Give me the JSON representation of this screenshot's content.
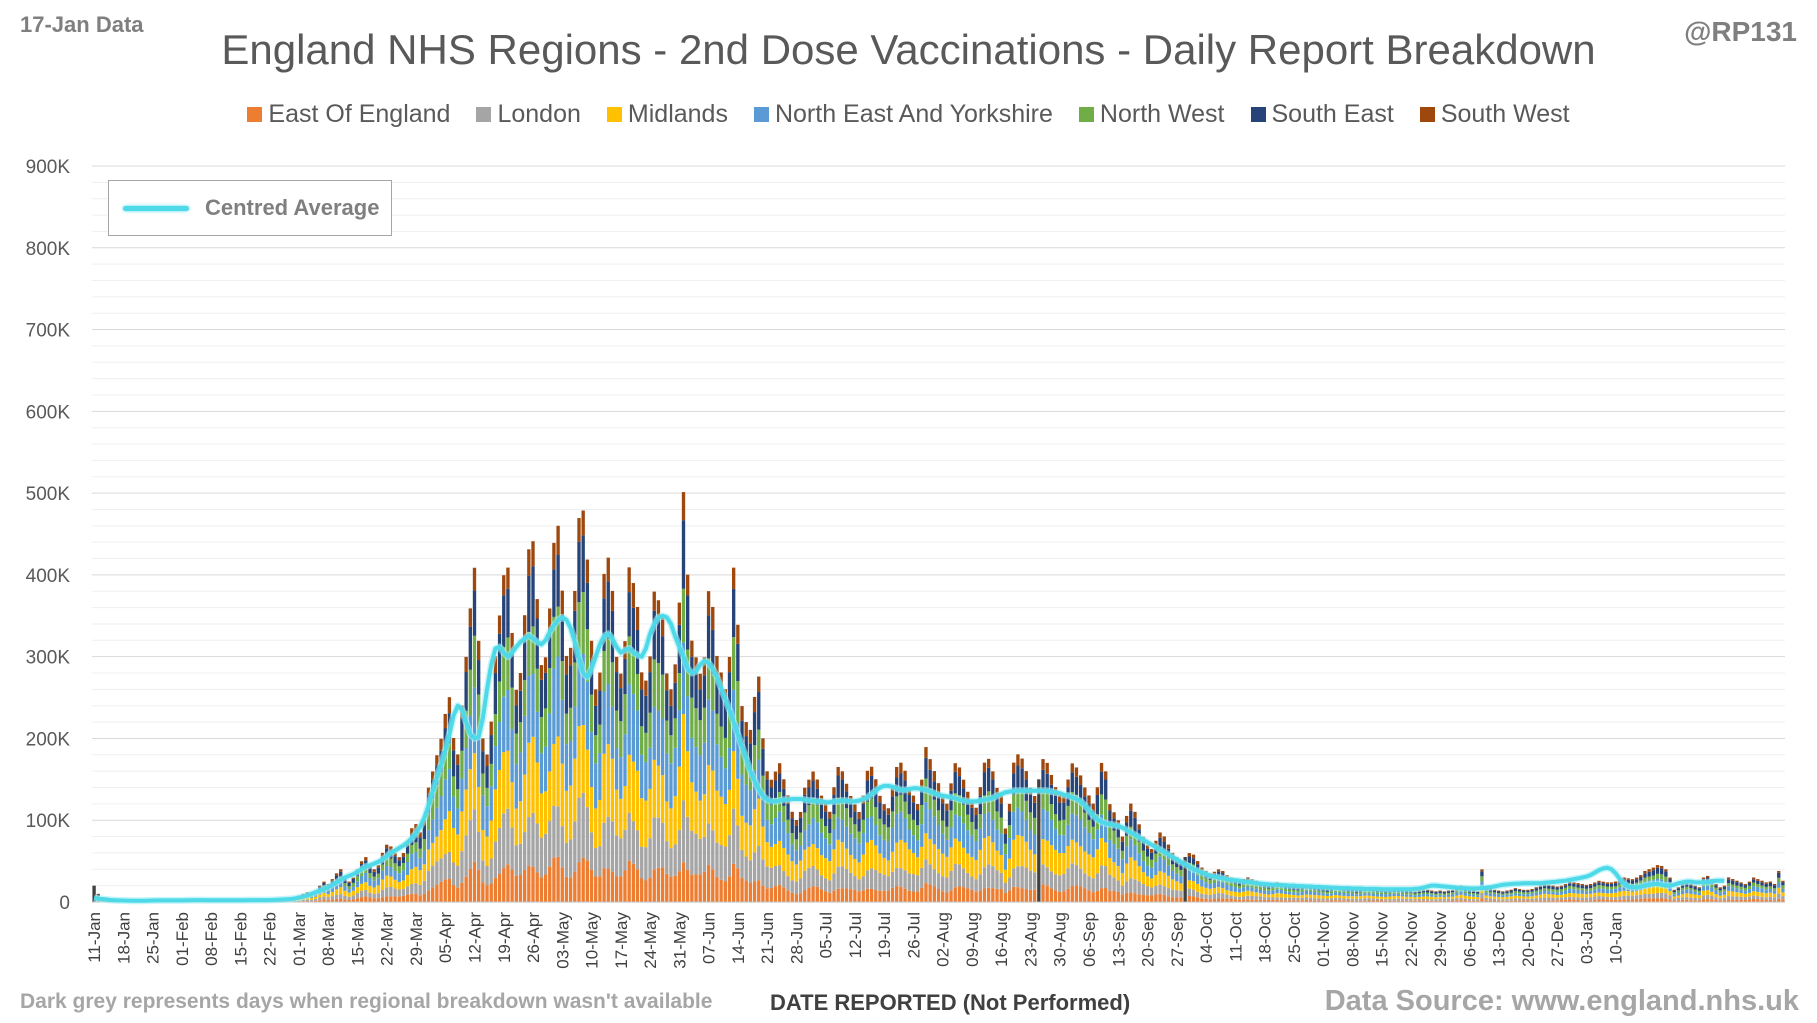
{
  "header": {
    "data_date": "17-Jan Data",
    "author": "@RP131",
    "title": "England NHS Regions - 2nd Dose Vaccinations - Daily Report Breakdown"
  },
  "footer": {
    "note": "Dark grey represents days when regional breakdown wasn't available",
    "xlabel": "DATE REPORTED (Not Performed)",
    "source": "Data Source: www.england.nhs.uk"
  },
  "avg_legend_label": "Centred Average",
  "colors": {
    "East Of England": "#ed7d31",
    "London": "#a5a5a5",
    "Midlands": "#ffc000",
    "North East And Yorkshire": "#5b9bd5",
    "North West": "#70ad47",
    "South East": "#264478",
    "South West": "#9e480e",
    "unavailable": "#404040",
    "average": "#4dd9e8"
  },
  "chart_data": {
    "type": "bar",
    "stacked": true,
    "title": "England NHS Regions - 2nd Dose Vaccinations - Daily Report Breakdown",
    "xlabel": "DATE REPORTED (Not Performed)",
    "ylabel": "",
    "ylim": [
      0,
      900000
    ],
    "y_ticks": [
      "0",
      "100K",
      "200K",
      "300K",
      "400K",
      "500K",
      "600K",
      "700K",
      "800K",
      "900K"
    ],
    "grid": true,
    "legend_position": "top",
    "series_names": [
      "East Of England",
      "London",
      "Midlands",
      "North East And Yorkshire",
      "North West",
      "South East",
      "South West"
    ],
    "region_shares": [
      0.11,
      0.15,
      0.19,
      0.19,
      0.14,
      0.15,
      0.07
    ],
    "x_tick_labels": [
      "11-Jan",
      "18-Jan",
      "25-Jan",
      "01-Feb",
      "08-Feb",
      "15-Feb",
      "22-Feb",
      "01-Mar",
      "08-Mar",
      "15-Mar",
      "22-Mar",
      "29-Mar",
      "05-Apr",
      "12-Apr",
      "19-Apr",
      "26-Apr",
      "03-May",
      "10-May",
      "17-May",
      "24-May",
      "31-May",
      "07-Jun",
      "14-Jun",
      "21-Jun",
      "28-Jun",
      "05-Jul",
      "12-Jul",
      "19-Jul",
      "26-Jul",
      "02-Aug",
      "09-Aug",
      "16-Aug",
      "23-Aug",
      "30-Aug",
      "06-Sep",
      "13-Sep",
      "20-Sep",
      "27-Sep",
      "04-Oct",
      "11-Oct",
      "18-Oct",
      "25-Oct",
      "01-Nov",
      "08-Nov",
      "15-Nov",
      "22-Nov",
      "29-Nov",
      "06-Dec",
      "13-Dec",
      "20-Dec",
      "27-Dec",
      "03-Jan",
      "10-Jan"
    ],
    "daily_totals": [
      20000,
      10000,
      6000,
      3000,
      2000,
      1500,
      1500,
      1200,
      1000,
      1500,
      1200,
      1000,
      1500,
      1000,
      1500,
      2000,
      2500,
      2000,
      1500,
      1200,
      1500,
      1500,
      2000,
      4000,
      3000,
      2500,
      2000,
      2000,
      1500,
      1500,
      2000,
      2500,
      2500,
      2000,
      1500,
      1500,
      2000,
      3000,
      2500,
      2000,
      1500,
      1500,
      2000,
      3000,
      3000,
      2500,
      2000,
      3000,
      5000,
      8000,
      10000,
      12000,
      10000,
      14000,
      20000,
      25000,
      22000,
      28000,
      35000,
      40000,
      30000,
      25000,
      30000,
      40000,
      50000,
      55000,
      45000,
      40000,
      45000,
      60000,
      70000,
      68000,
      60000,
      55000,
      60000,
      75000,
      90000,
      95000,
      85000,
      100000,
      140000,
      160000,
      180000,
      200000,
      230000,
      250000,
      200000,
      180000,
      240000,
      300000,
      360000,
      410000,
      320000,
      200000,
      180000,
      220000,
      300000,
      350000,
      400000,
      410000,
      330000,
      260000,
      280000,
      350000,
      430000,
      440000,
      370000,
      290000,
      300000,
      360000,
      440000,
      460000,
      380000,
      300000,
      310000,
      380000,
      470000,
      480000,
      420000,
      320000,
      260000,
      280000,
      400000,
      420000,
      380000,
      300000,
      280000,
      320000,
      410000,
      390000,
      360000,
      280000,
      270000,
      300000,
      380000,
      370000,
      350000,
      280000,
      260000,
      290000,
      365000,
      500000,
      400000,
      320000,
      300000,
      280000,
      300000,
      380000,
      360000,
      300000,
      280000,
      260000,
      300000,
      410000,
      340000,
      240000,
      220000,
      210000,
      250000,
      275000,
      200000,
      160000,
      150000,
      160000,
      170000,
      150000,
      130000,
      110000,
      100000,
      110000,
      140000,
      150000,
      160000,
      150000,
      130000,
      120000,
      110000,
      140000,
      165000,
      160000,
      145000,
      130000,
      120000,
      110000,
      130000,
      160000,
      165000,
      150000,
      130000,
      120000,
      115000,
      140000,
      165000,
      170000,
      160000,
      140000,
      130000,
      120000,
      150000,
      190000,
      175000,
      160000,
      145000,
      130000,
      120000,
      145000,
      170000,
      165000,
      150000,
      135000,
      125000,
      115000,
      140000,
      170000,
      175000,
      160000,
      140000,
      130000,
      90000,
      120000,
      170000,
      180000,
      175000,
      160000,
      140000,
      130000,
      150000,
      175000,
      170000,
      155000,
      140000,
      130000,
      130000,
      150000,
      170000,
      165000,
      155000,
      140000,
      130000,
      120000,
      140000,
      170000,
      160000,
      120000,
      110000,
      100000,
      80000,
      105000,
      120000,
      110000,
      95000,
      80000,
      70000,
      65000,
      75000,
      85000,
      80000,
      70000,
      60000,
      55000,
      50000,
      55000,
      60000,
      58000,
      50000,
      42000,
      38000,
      35000,
      37000,
      40000,
      38000,
      33000,
      30000,
      28000,
      26000,
      28000,
      30000,
      28000,
      26000,
      24000,
      22000,
      21000,
      22000,
      24000,
      23000,
      21000,
      20000,
      19000,
      18000,
      19000,
      21000,
      20000,
      19000,
      18000,
      17000,
      16000,
      17000,
      19000,
      18000,
      17000,
      16000,
      16000,
      15000,
      16000,
      17000,
      17000,
      16000,
      15000,
      15000,
      14000,
      15000,
      16000,
      16000,
      15000,
      14000,
      14000,
      13000,
      14000,
      15000,
      15000,
      14000,
      13000,
      14000,
      13000,
      14000,
      15000,
      18000,
      20000,
      17000,
      15000,
      14000,
      13000,
      40000,
      18000,
      16000,
      15000,
      14000,
      13000,
      14000,
      15000,
      17000,
      16000,
      15000,
      15000,
      16000,
      18000,
      20000,
      22000,
      21000,
      20000,
      19000,
      20000,
      22000,
      25000,
      24000,
      23000,
      22000,
      21000,
      22000,
      24000,
      26000,
      25000,
      24000,
      24000,
      25000,
      28000,
      30000,
      29000,
      28000,
      30000,
      33000,
      38000,
      40000,
      42000,
      45000,
      44000,
      40000,
      30000,
      15000,
      18000,
      22000,
      24000,
      22000,
      20000,
      18000,
      30000,
      32000,
      28000,
      22000,
      18000,
      20000,
      30000,
      28000,
      26000,
      24000,
      22000,
      25000,
      30000,
      28000,
      26000,
      24000,
      25000,
      22000,
      38000,
      26000
    ],
    "centred_average": [
      5000,
      4000,
      3500,
      3000,
      2500,
      2200,
      2000,
      1800,
      1700,
      1600,
      1600,
      1600,
      1600,
      1700,
      1800,
      1900,
      2000,
      2000,
      2000,
      2000,
      2000,
      2000,
      2100,
      2200,
      2300,
      2300,
      2300,
      2200,
      2100,
      2100,
      2100,
      2100,
      2100,
      2100,
      2100,
      2100,
      2200,
      2300,
      2300,
      2300,
      2300,
      2300,
      2400,
      2600,
      2800,
      3000,
      3300,
      3700,
      4300,
      5200,
      6500,
      8000,
      10000,
      12000,
      14000,
      16000,
      18000,
      21000,
      24000,
      27000,
      30000,
      32000,
      34000,
      37000,
      40000,
      43000,
      45000,
      47000,
      49000,
      52000,
      56000,
      60000,
      63000,
      66000,
      69000,
      73000,
      78000,
      84000,
      92000,
      103000,
      118000,
      135000,
      152000,
      168000,
      185000,
      205000,
      228000,
      240000,
      235000,
      220000,
      205000,
      200000,
      202000,
      225000,
      260000,
      290000,
      310000,
      312000,
      305000,
      300000,
      305000,
      312000,
      318000,
      322000,
      326000,
      322000,
      318000,
      315000,
      320000,
      330000,
      338000,
      345000,
      348000,
      345000,
      335000,
      318000,
      298000,
      280000,
      275000,
      285000,
      300000,
      315000,
      325000,
      328000,
      322000,
      312000,
      305000,
      308000,
      310000,
      305000,
      302000,
      300000,
      310000,
      328000,
      340000,
      348000,
      350000,
      348000,
      340000,
      325000,
      312000,
      300000,
      285000,
      280000,
      282000,
      290000,
      295000,
      292000,
      285000,
      275000,
      262000,
      248000,
      235000,
      220000,
      205000,
      190000,
      175000,
      160000,
      148000,
      138000,
      130000,
      125000,
      123000,
      123000,
      124000,
      125000,
      125000,
      126000,
      126000,
      126000,
      125000,
      124000,
      124000,
      123000,
      123000,
      122000,
      122000,
      123000,
      123000,
      124000,
      124000,
      123000,
      123000,
      124000,
      126000,
      128000,
      132000,
      136000,
      140000,
      142000,
      142000,
      141000,
      139000,
      137000,
      137000,
      138000,
      139000,
      139000,
      138000,
      137000,
      135000,
      133000,
      131000,
      130000,
      129000,
      128000,
      127000,
      125000,
      124000,
      123000,
      123000,
      123000,
      124000,
      125000,
      126000,
      127000,
      130000,
      132000,
      134000,
      135000,
      136000,
      136000,
      136000,
      136000,
      136000,
      136000,
      136000,
      136000,
      136000,
      135000,
      134000,
      133000,
      131000,
      130000,
      128000,
      126000,
      123000,
      118000,
      112000,
      106000,
      101000,
      98000,
      96000,
      95000,
      94000,
      93000,
      91000,
      88000,
      85000,
      82000,
      79000,
      76000,
      73000,
      70000,
      67000,
      64000,
      61000,
      58000,
      55000,
      52000,
      49000,
      46000,
      43000,
      40000,
      38000,
      36000,
      34000,
      32000,
      31000,
      30000,
      29000,
      28000,
      27000,
      26500,
      26000,
      25000,
      24500,
      24000,
      23000,
      22500,
      22000,
      21500,
      21000,
      21000,
      20500,
      20500,
      20000,
      20000,
      19500,
      19500,
      19000,
      19000,
      18500,
      18500,
      18000,
      18000,
      17500,
      17500,
      17000,
      17000,
      17000,
      16500,
      16500,
      16500,
      16000,
      16000,
      16000,
      16000,
      15500,
      15500,
      15500,
      15500,
      15500,
      15500,
      15500,
      15500,
      16000,
      16500,
      17500,
      19000,
      20000,
      20000,
      19500,
      19000,
      18500,
      18000,
      17500,
      17000,
      17000,
      16500,
      16500,
      16500,
      17000,
      17500,
      18000,
      19000,
      20000,
      21000,
      21500,
      22000,
      22500,
      22500,
      23000,
      23000,
      23000,
      23000,
      23000,
      23500,
      24000,
      24500,
      25000,
      25500,
      26000,
      27000,
      28000,
      29000,
      30000,
      31000,
      33000,
      36000,
      39000,
      41000,
      42000,
      40000,
      35000,
      28000,
      22000,
      19000,
      18000,
      18000,
      19000,
      20000,
      21000,
      22000,
      22000,
      21000,
      20000,
      20000,
      21000,
      23000,
      24000,
      25000,
      25000,
      24000,
      24000,
      24000,
      24000,
      25000,
      26000,
      26000,
      26000
    ]
  },
  "legend": [
    {
      "label": "East Of England",
      "color": "#ed7d31"
    },
    {
      "label": "London",
      "color": "#a5a5a5"
    },
    {
      "label": "Midlands",
      "color": "#ffc000"
    },
    {
      "label": "North East And Yorkshire",
      "color": "#5b9bd5"
    },
    {
      "label": "North West",
      "color": "#70ad47"
    },
    {
      "label": "South East",
      "color": "#264478"
    },
    {
      "label": "South West",
      "color": "#9e480e"
    }
  ]
}
